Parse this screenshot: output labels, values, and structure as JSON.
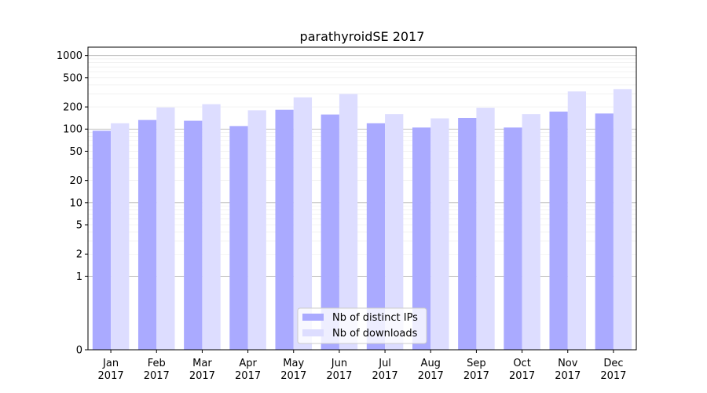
{
  "chart_data": {
    "type": "bar",
    "title": "parathyroidSE 2017",
    "xlabel": "",
    "ylabel": "",
    "yscale": "symlog",
    "ylim": [
      0,
      1300
    ],
    "yticks": [
      0,
      1,
      2,
      5,
      10,
      20,
      50,
      100,
      200,
      500,
      1000
    ],
    "ytick_labels": [
      "0",
      "1",
      "2",
      "5",
      "10",
      "20",
      "50",
      "100",
      "200",
      "500",
      "1000"
    ],
    "grid": "horizontal",
    "legend_position": "lower-center",
    "categories": [
      {
        "month": "Jan",
        "year": "2017"
      },
      {
        "month": "Feb",
        "year": "2017"
      },
      {
        "month": "Mar",
        "year": "2017"
      },
      {
        "month": "Apr",
        "year": "2017"
      },
      {
        "month": "May",
        "year": "2017"
      },
      {
        "month": "Jun",
        "year": "2017"
      },
      {
        "month": "Jul",
        "year": "2017"
      },
      {
        "month": "Aug",
        "year": "2017"
      },
      {
        "month": "Sep",
        "year": "2017"
      },
      {
        "month": "Oct",
        "year": "2017"
      },
      {
        "month": "Nov",
        "year": "2017"
      },
      {
        "month": "Dec",
        "year": "2017"
      }
    ],
    "series": [
      {
        "name": "Nb of distinct IPs",
        "color": "#aaaaff",
        "values": [
          95,
          133,
          130,
          110,
          183,
          158,
          120,
          105,
          142,
          105,
          173,
          163
        ]
      },
      {
        "name": "Nb of downloads",
        "color": "#ddddff",
        "values": [
          120,
          197,
          218,
          180,
          270,
          300,
          160,
          140,
          195,
          160,
          325,
          350
        ]
      }
    ]
  }
}
